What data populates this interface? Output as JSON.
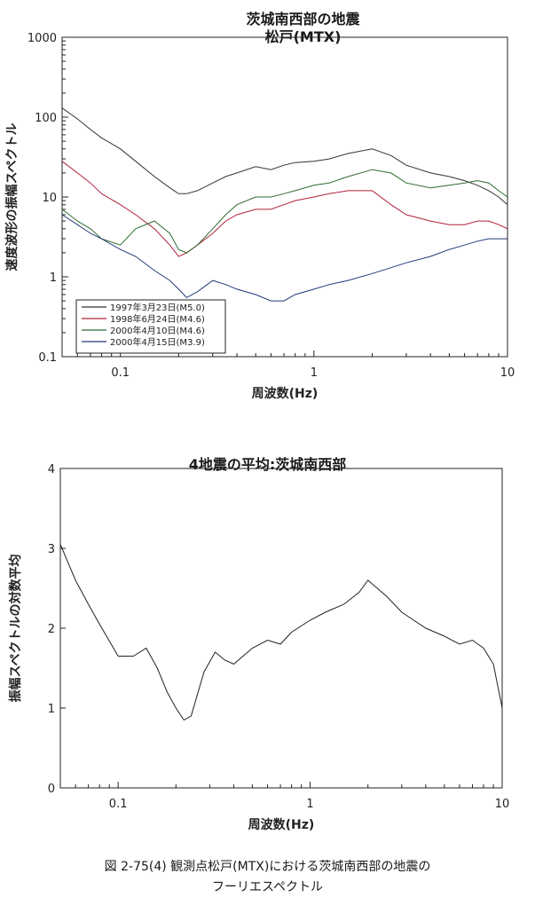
{
  "chart_data": [
    {
      "type": "line",
      "title": "茨城南西部の地震",
      "subtitle": "松戸(MTX)",
      "xlabel": "周波数(Hz)",
      "ylabel": "速度波形の振幅スペクトル",
      "xscale": "log",
      "yscale": "log",
      "xlim": [
        0.05,
        10
      ],
      "ylim": [
        0.1,
        1000
      ],
      "xticks": [
        "0.1",
        "1",
        "10"
      ],
      "yticks": [
        "0.1",
        "1",
        "10",
        "100",
        "1000"
      ],
      "legend_position": "lower-left",
      "series": [
        {
          "name": "1997年3月23日(M5.0)",
          "color": "#333333",
          "x": [
            0.05,
            0.06,
            0.07,
            0.08,
            0.1,
            0.12,
            0.15,
            0.18,
            0.2,
            0.22,
            0.25,
            0.3,
            0.35,
            0.4,
            0.5,
            0.6,
            0.7,
            0.8,
            1,
            1.2,
            1.5,
            2,
            2.5,
            3,
            4,
            5,
            6,
            7,
            8,
            9,
            10
          ],
          "y": [
            130,
            95,
            70,
            55,
            40,
            28,
            18,
            13,
            11,
            11,
            12,
            15,
            18,
            20,
            24,
            22,
            25,
            27,
            28,
            30,
            35,
            40,
            33,
            25,
            20,
            18,
            16,
            14,
            12,
            10,
            8
          ]
        },
        {
          "name": "1998年6月24日(M4.6)",
          "color": "#b0203a",
          "x": [
            0.05,
            0.06,
            0.07,
            0.08,
            0.1,
            0.12,
            0.15,
            0.18,
            0.2,
            0.22,
            0.25,
            0.3,
            0.35,
            0.4,
            0.5,
            0.6,
            0.7,
            0.8,
            1,
            1.2,
            1.5,
            2,
            2.5,
            3,
            4,
            5,
            6,
            7,
            8,
            9,
            10
          ],
          "y": [
            28,
            20,
            15,
            11,
            8,
            6,
            4,
            2.5,
            1.8,
            2,
            2.5,
            3.5,
            5,
            6,
            7,
            7,
            8,
            9,
            10,
            11,
            12,
            12,
            8,
            6,
            5,
            4.5,
            4.5,
            5,
            5,
            4.5,
            4
          ]
        },
        {
          "name": "2000年4月10日(M4.6)",
          "color": "#2e6b30",
          "x": [
            0.05,
            0.06,
            0.07,
            0.08,
            0.1,
            0.12,
            0.15,
            0.18,
            0.2,
            0.22,
            0.25,
            0.3,
            0.35,
            0.4,
            0.5,
            0.6,
            0.7,
            0.8,
            1,
            1.2,
            1.5,
            2,
            2.5,
            3,
            4,
            5,
            6,
            7,
            8,
            9,
            10
          ],
          "y": [
            7,
            5,
            4,
            3,
            2.5,
            4,
            5,
            3.5,
            2.2,
            2,
            2.5,
            4,
            6,
            8,
            10,
            10,
            11,
            12,
            14,
            15,
            18,
            22,
            20,
            15,
            13,
            14,
            15,
            16,
            15,
            12,
            10
          ]
        },
        {
          "name": "2000年4月15日(M3.9)",
          "color": "#203a78",
          "x": [
            0.05,
            0.06,
            0.07,
            0.08,
            0.1,
            0.12,
            0.15,
            0.18,
            0.2,
            0.22,
            0.25,
            0.3,
            0.35,
            0.4,
            0.5,
            0.6,
            0.7,
            0.8,
            1,
            1.2,
            1.5,
            2,
            2.5,
            3,
            4,
            5,
            6,
            7,
            8,
            9,
            10
          ],
          "y": [
            6,
            4.5,
            3.5,
            3,
            2.2,
            1.8,
            1.2,
            0.9,
            0.7,
            0.55,
            0.65,
            0.9,
            0.8,
            0.7,
            0.6,
            0.5,
            0.5,
            0.6,
            0.7,
            0.8,
            0.9,
            1.1,
            1.3,
            1.5,
            1.8,
            2.2,
            2.5,
            2.8,
            3,
            3,
            3
          ]
        }
      ]
    },
    {
      "type": "line",
      "title": "4地震の平均:茨城南西部",
      "xlabel": "周波数(Hz)",
      "ylabel": "振幅スペクトルの対数平均",
      "xscale": "log",
      "xlim": [
        0.05,
        10
      ],
      "ylim": [
        0,
        4
      ],
      "xticks": [
        "0.1",
        "1",
        "10"
      ],
      "yticks": [
        "0",
        "1",
        "2",
        "3",
        "4"
      ],
      "series": [
        {
          "color": "#222222",
          "x": [
            0.05,
            0.06,
            0.07,
            0.08,
            0.1,
            0.12,
            0.14,
            0.16,
            0.18,
            0.2,
            0.22,
            0.24,
            0.28,
            0.32,
            0.36,
            0.4,
            0.5,
            0.6,
            0.7,
            0.8,
            1,
            1.2,
            1.5,
            1.8,
            2,
            2.5,
            3,
            4,
            5,
            6,
            7,
            8,
            9,
            10
          ],
          "y": [
            3.05,
            2.6,
            2.3,
            2.05,
            1.65,
            1.65,
            1.75,
            1.5,
            1.2,
            1.0,
            0.85,
            0.9,
            1.45,
            1.7,
            1.6,
            1.55,
            1.75,
            1.85,
            1.8,
            1.95,
            2.1,
            2.2,
            2.3,
            2.45,
            2.6,
            2.4,
            2.2,
            2.0,
            1.9,
            1.8,
            1.85,
            1.75,
            1.55,
            1.0
          ]
        }
      ]
    }
  ],
  "caption": {
    "line1": "図 2-75(4) 観測点松戸(MTX)における茨城南西部の地震の",
    "line2": "フーリエスペクトル"
  }
}
